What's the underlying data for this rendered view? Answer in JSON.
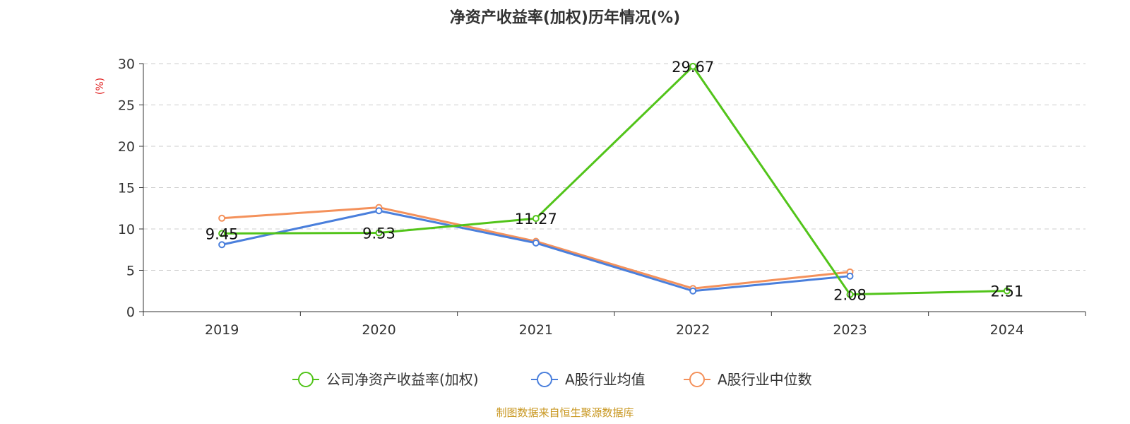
{
  "chart_data": {
    "type": "line",
    "title": "净资产收益率(加权)历年情况(%)",
    "ylabel": "(%)",
    "ylim": [
      0,
      30
    ],
    "yticks": [
      0,
      5,
      10,
      15,
      20,
      25,
      30
    ],
    "grid": true,
    "legend_position": "bottom-center",
    "categories": [
      "2019",
      "2020",
      "2021",
      "2022",
      "2023",
      "2024"
    ],
    "series": [
      {
        "name": "公司净资产收益率(加权)",
        "color": "#52c41a",
        "values": [
          9.45,
          9.53,
          11.27,
          29.67,
          2.08,
          2.51
        ],
        "labels": [
          "9.45",
          "9.53",
          "11.27",
          "29.67",
          "2.08",
          "2.51"
        ]
      },
      {
        "name": "A股行业均值",
        "color": "#4a7fdc",
        "values": [
          8.1,
          12.2,
          8.3,
          2.5,
          4.3,
          null
        ]
      },
      {
        "name": "A股行业中位数",
        "color": "#f4915b",
        "values": [
          11.3,
          12.6,
          8.5,
          2.8,
          4.8,
          null
        ]
      }
    ],
    "source": "制图数据来自恒生聚源数据库",
    "ylabel_color": "#e02020",
    "source_color": "#c8961e"
  }
}
